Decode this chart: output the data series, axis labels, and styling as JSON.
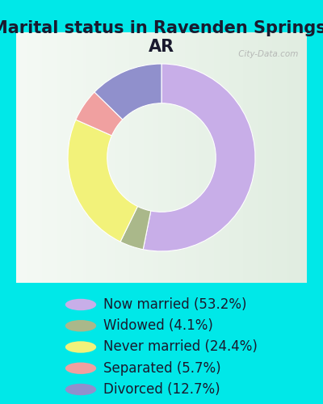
{
  "title": "Marital status in Ravenden Springs,\nAR",
  "slices": [
    53.2,
    4.1,
    24.4,
    5.7,
    12.7
  ],
  "labels": [
    "Now married (53.2%)",
    "Widowed (4.1%)",
    "Never married (24.4%)",
    "Separated (5.7%)",
    "Divorced (12.7%)"
  ],
  "colors": [
    "#c8aee8",
    "#aab88a",
    "#f2f27a",
    "#f0a0a0",
    "#9090cc"
  ],
  "background_cyan": "#00e8e8",
  "title_fontsize": 15,
  "legend_fontsize": 12,
  "watermark": " City-Data.com"
}
